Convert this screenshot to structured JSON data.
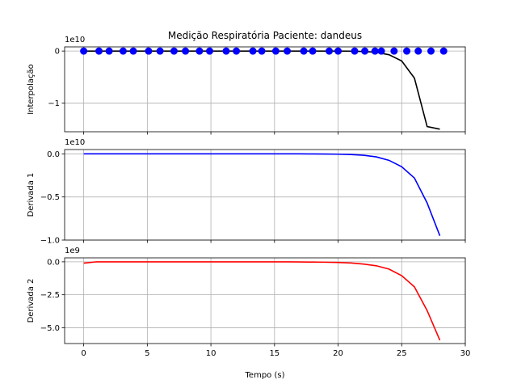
{
  "chart_data": {
    "type": "line",
    "title": "Medição Respiratória Paciente: dandeus",
    "xlabel": "Tempo (s)",
    "xlim": [
      -1.5,
      30.0
    ],
    "xticks": [
      0,
      5,
      10,
      15,
      20,
      25,
      30
    ],
    "xtick_labels": [
      "0",
      "5",
      "10",
      "15",
      "20",
      "25",
      "30"
    ],
    "grid": true,
    "panels": [
      {
        "ylabel": "Interpolação",
        "offset_text": "1e10",
        "ylim": [
          -1.55,
          0.08
        ],
        "yticks": [
          0,
          -1
        ],
        "ytick_labels": [
          "0",
          "−1"
        ],
        "line_color": "#000000",
        "series": {
          "x": [
            0,
            1,
            2,
            3,
            4,
            5,
            6,
            7,
            8,
            9,
            10,
            11,
            12,
            13,
            14,
            15,
            16,
            17,
            18,
            19,
            20,
            21,
            22,
            23,
            24,
            25,
            26,
            27,
            28
          ],
          "y": [
            0,
            0,
            0,
            0,
            0,
            0,
            0,
            0,
            0,
            0,
            0,
            0,
            0,
            0,
            0,
            0,
            0,
            0,
            0,
            0,
            -0.001,
            -0.003,
            -0.009,
            -0.025,
            -0.07,
            -0.19,
            -0.52,
            -1.45,
            -1.5
          ]
        },
        "scatter": {
          "color": "#0000ff",
          "x": [
            0,
            1.2,
            2,
            3.1,
            3.9,
            5.1,
            6,
            7.1,
            8,
            9.1,
            9.9,
            11.2,
            12,
            13.3,
            14,
            15.1,
            16,
            17.3,
            18,
            19.3,
            20,
            21.3,
            22.1,
            22.9,
            23.4,
            24.4,
            25.4,
            26.3,
            27.3,
            28.3
          ],
          "y": [
            0,
            0,
            0,
            0,
            0,
            0,
            0,
            0,
            0,
            0,
            0,
            0,
            0,
            0,
            0,
            0,
            0,
            0,
            0,
            0,
            0,
            0,
            0,
            0,
            0,
            0,
            0,
            0,
            0,
            0
          ]
        }
      },
      {
        "ylabel": "Derivada 1",
        "offset_text": "1e10",
        "ylim": [
          -1.0,
          0.05
        ],
        "yticks": [
          0.0,
          -0.5,
          -1.0
        ],
        "ytick_labels": [
          "0.0",
          "−0.5",
          "−1.0"
        ],
        "line_color": "#0000ff",
        "series": {
          "x": [
            0,
            1,
            2,
            3,
            4,
            5,
            6,
            7,
            8,
            9,
            10,
            11,
            12,
            13,
            14,
            15,
            16,
            17,
            18,
            19,
            20,
            21,
            22,
            23,
            24,
            25,
            26,
            27,
            28
          ],
          "y": [
            0,
            0,
            0,
            0,
            0,
            0,
            0,
            0,
            0,
            0,
            0,
            0,
            0,
            0,
            0,
            0,
            0,
            0,
            -0.001,
            -0.002,
            -0.004,
            -0.008,
            -0.016,
            -0.035,
            -0.075,
            -0.15,
            -0.28,
            -0.57,
            -0.95
          ]
        }
      },
      {
        "ylabel": "Derivada 2",
        "offset_text": "1e9",
        "ylim": [
          -6.2,
          0.3
        ],
        "yticks": [
          0.0,
          -2.5,
          -5.0
        ],
        "ytick_labels": [
          "0.0",
          "−2.5",
          "−5.0"
        ],
        "line_color": "#ff0000",
        "series": {
          "x": [
            0,
            1,
            2,
            3,
            4,
            5,
            6,
            7,
            8,
            9,
            10,
            11,
            12,
            13,
            14,
            15,
            16,
            17,
            18,
            19,
            20,
            21,
            22,
            23,
            24,
            25,
            26,
            27,
            28
          ],
          "y": [
            -0.1,
            0,
            0,
            0,
            0,
            0,
            0,
            0,
            0,
            0,
            0,
            0,
            0,
            0,
            0,
            0,
            0,
            -0.01,
            -0.02,
            -0.03,
            -0.05,
            -0.09,
            -0.17,
            -0.3,
            -0.55,
            -1.05,
            -1.9,
            -3.7,
            -5.95
          ]
        }
      }
    ]
  }
}
